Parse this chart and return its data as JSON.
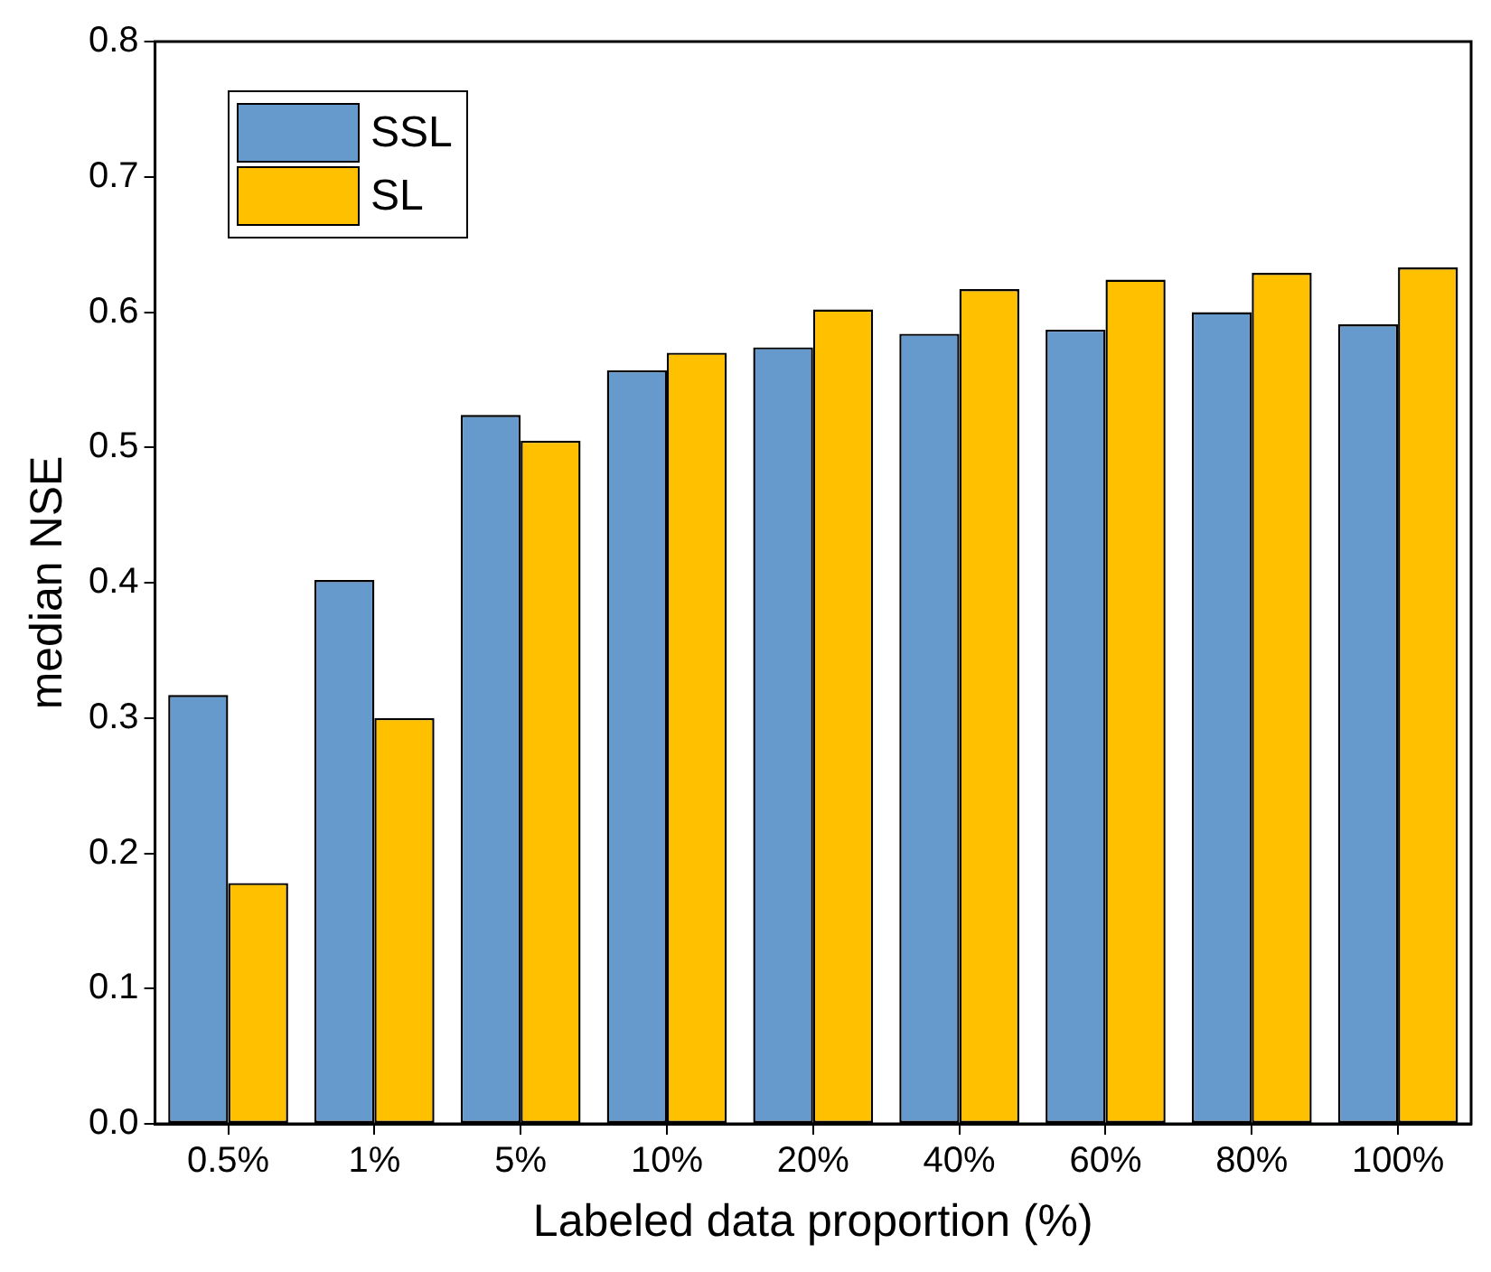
{
  "chart_data": {
    "type": "bar",
    "xlabel": "Labeled data proportion (%)",
    "ylabel": "median NSE",
    "categories": [
      "0.5%",
      "1%",
      "5%",
      "10%",
      "20%",
      "40%",
      "60%",
      "80%",
      "100%"
    ],
    "series": [
      {
        "name": "SSL",
        "color": "#6699cc",
        "values": [
          0.317,
          0.402,
          0.524,
          0.557,
          0.574,
          0.584,
          0.587,
          0.6,
          0.591
        ]
      },
      {
        "name": "SL",
        "color": "#ffc000",
        "values": [
          0.178,
          0.3,
          0.505,
          0.57,
          0.602,
          0.617,
          0.624,
          0.629,
          0.633
        ]
      }
    ],
    "ylim": [
      0,
      0.8
    ],
    "yticks": [
      {
        "value": 0,
        "label": "0.0"
      },
      0.1,
      0.2,
      0.3,
      0.4,
      0.5,
      0.6,
      0.7,
      0.8
    ],
    "grid": false,
    "legend": "top left"
  }
}
